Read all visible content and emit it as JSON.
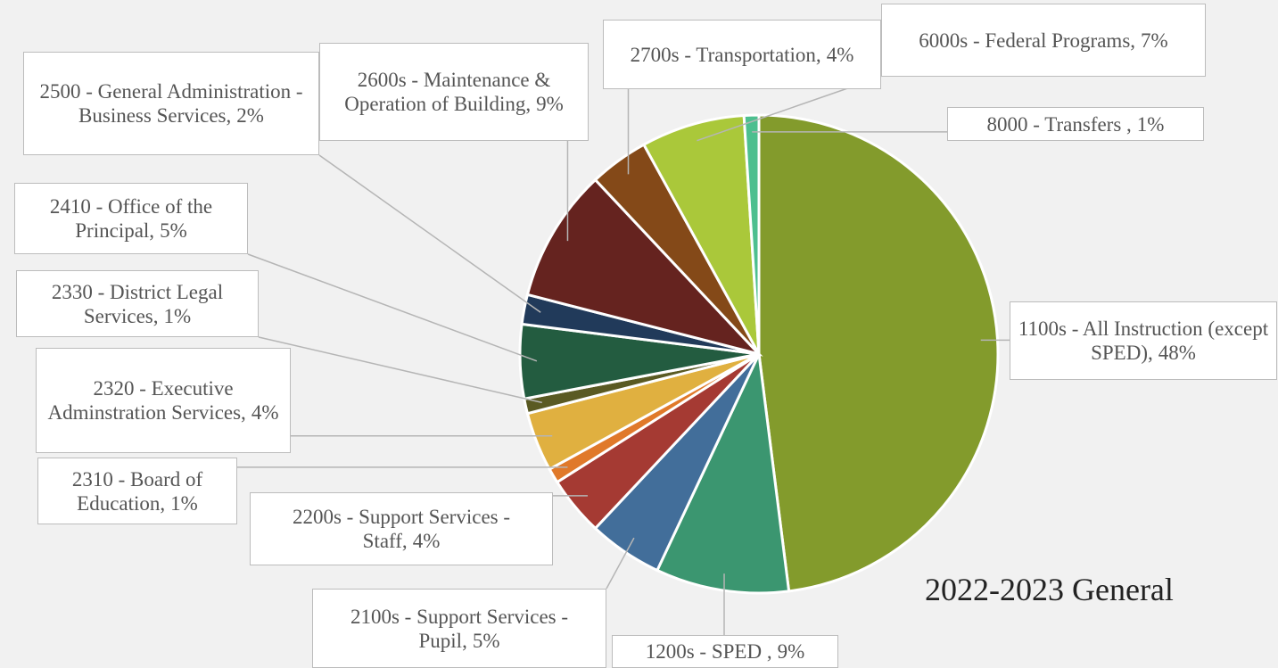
{
  "chart_data": {
    "type": "pie",
    "title": "2022-2023 General",
    "categories": [
      "1100s - All Instruction (except SPED),",
      "1200s - SPED ,",
      "2100s - Support Services - Pupil,",
      "2200s - Support Services - Staff,",
      "2310 - Board of Education,",
      "2320 - Executive Adminstration Services,",
      "2330 - District Legal Services,",
      "2410 - Office of the Principal,",
      "2500 - General Administration - Business Services,",
      "2600s - Maintenance & Operation of Building,",
      "2700s - Transportation,",
      "6000s - Federal Programs,",
      "8000 - Transfers ,"
    ],
    "values": [
      48,
      9,
      5,
      4,
      1,
      4,
      1,
      5,
      2,
      9,
      4,
      7,
      1
    ],
    "value_labels": [
      "48%",
      "9%",
      "5%",
      "4%",
      "1%",
      "4%",
      "1%",
      "5%",
      "2%",
      "9%",
      "4%",
      "7%",
      "1%"
    ],
    "colors": [
      "#839b2c",
      "#3b9670",
      "#426e9a",
      "#a53a33",
      "#e0792a",
      "#e0b040",
      "#5a5a23",
      "#235c40",
      "#213a5a",
      "#65231f",
      "#844918",
      "#aac83a",
      "#4dbf8f"
    ]
  }
}
